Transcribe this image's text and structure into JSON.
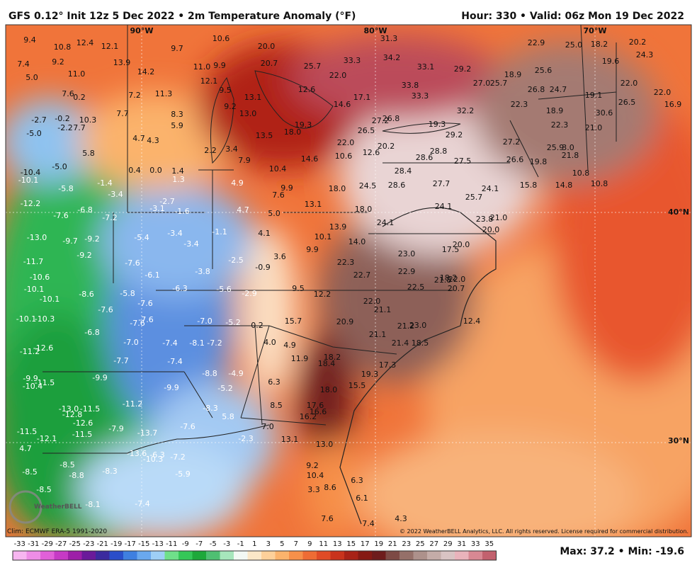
{
  "header": {
    "title": "GFS 0.12° Init 12z 5 Dec 2022 • 2m Temperature Anomaly (°F)",
    "valid": "Hour: 330 • Valid: 06z Mon 19 Dec 2022"
  },
  "map": {
    "grid_labels": [
      "90°W",
      "80°W",
      "70°W",
      "40°N",
      "30°N"
    ],
    "anomaly_labels": [
      "9.4",
      "10.8",
      "12.4",
      "12.1",
      "7.4",
      "9.2",
      "13.9",
      "9.7",
      "10.6",
      "20.0",
      "31.3",
      "22.9",
      "25.0",
      "18.2",
      "20.2",
      "24.3",
      "5.0",
      "11.0",
      "14.2",
      "11.0",
      "9.9",
      "20.7",
      "25.7",
      "33.3",
      "34.2",
      "33.1",
      "29.2",
      "19.6",
      "7.6",
      "0.2",
      "7.2",
      "11.3",
      "12.1",
      "9.5",
      "13.1",
      "12.6",
      "22.0",
      "17.1",
      "33.8",
      "33.3",
      "27.0",
      "25.7",
      "18.9",
      "25.6",
      "26.8",
      "24.7",
      "19.1",
      "22.0",
      "22.0",
      "16.9",
      "10.3",
      "-2.7",
      "-0.2",
      "-2.2",
      "7.7",
      "7.7",
      "8.3",
      "9.2",
      "13.0",
      "14.6",
      "32.2",
      "22.3",
      "18.9",
      "26.5",
      "30.6",
      "-5.0",
      "5.9",
      "19.3",
      "27.2",
      "26.8",
      "19.3",
      "22.3",
      "21.0",
      "4.7",
      "4.3",
      "13.5",
      "18.0",
      "26.5",
      "29.2",
      "22.0",
      "27.2",
      "5.8",
      "2.2",
      "3.4",
      "10.6",
      "12.6",
      "20.2",
      "28.8",
      "28.6",
      "25.9",
      "3.0",
      "21.8",
      "-5.0",
      "7.9",
      "14.6",
      "27.5",
      "26.6",
      "19.8",
      "0.4",
      "0.0",
      "1.4",
      "10.4",
      "28.4",
      "10.8",
      "-10.4",
      "-10.1",
      "1.3",
      "4.9",
      "9.9",
      "18.0",
      "24.5",
      "28.6",
      "27.7",
      "24.1",
      "15.8",
      "14.8",
      "10.8",
      "-5.8",
      "-1.4",
      "-3.4",
      "7.6",
      "25.7",
      "-12.2",
      "-6.8",
      "-7.2",
      "-2.7",
      "-3.1",
      "-1.6",
      "4.7",
      "5.0",
      "13.1",
      "18.0",
      "24.1",
      "-7.6",
      "21.0",
      "23.8",
      "24.1",
      "13.9",
      "20.0",
      "-13.0",
      "-9.7",
      "-9.2",
      "-5.4",
      "-3.4",
      "-1.1",
      "4.1",
      "10.1",
      "14.0",
      "23.0",
      "17.5",
      "20.0",
      "-9.2",
      "-3.4",
      "3.6",
      "9.9",
      "-11.7",
      "-7.6",
      "-2.5",
      "-0.9",
      "22.3",
      "22.9",
      "-10.6",
      "-6.1",
      "-3.8",
      "22.7",
      "21.8",
      "18.2",
      "22.0",
      "-10.1",
      "-8.6",
      "-5.8",
      "-6.3",
      "-5.6",
      "-2.9",
      "9.5",
      "12.2",
      "22.5",
      "20.7",
      "-10.1",
      "-7.6",
      "22.0",
      "-7.6",
      "21.1",
      "-10.1",
      "-10.3",
      "-7.6",
      "-7.6",
      "-7.0",
      "-5.2",
      "0.2",
      "15.7",
      "20.9",
      "21.2",
      "23.0",
      "12.4",
      "-6.8",
      "21.1",
      "-11.2",
      "-12.6",
      "-7.0",
      "-7.4",
      "-8.1",
      "-7.2",
      "4.0",
      "4.9",
      "21.4",
      "18.5",
      "-7.7",
      "-7.4",
      "11.9",
      "18.2",
      "18.4",
      "17.3",
      "-8.8",
      "-4.9",
      "19.3",
      "-9.9",
      "-10.4",
      "-11.5",
      "-9.9",
      "-9.9",
      "-5.2",
      "6.3",
      "15.5",
      "18.0",
      "-13.0",
      "-11.5",
      "-12.8",
      "-11.2",
      "-8.3",
      "8.5",
      "17.6",
      "16.6",
      "-12.6",
      "16.2",
      "5.8",
      "-7.9",
      "-7.6",
      "7.0",
      "-13.7",
      "-11.5",
      "-11.5",
      "-12.1",
      "-2.3",
      "13.1",
      "13.0",
      "4.7",
      "-13.6",
      "-10.3",
      "-6.3",
      "-7.2",
      "9.2",
      "10.4",
      "-8.5",
      "-8.5",
      "-8.8",
      "-8.3",
      "-5.9",
      "6.3",
      "8.6",
      "3.3",
      "-8.5",
      "6.1",
      "-8.1",
      "-7.4",
      "7.6",
      "7.4",
      "4.3"
    ],
    "logo": "WeatherBELL"
  },
  "footer": {
    "climo": "Clim: ECMWF ERA-5 1991-2020",
    "copyright": "© 2022 WeatherBELL Analytics, LLC. All rights reserved. License required for commercial distribution.",
    "maxmin": "Max: 37.2 • Min: -19.6"
  },
  "colorbar": {
    "ticks": [
      -33,
      -31,
      -29,
      -27,
      -25,
      -23,
      -21,
      -19,
      -17,
      -15,
      -13,
      -11,
      -9,
      -7,
      -5,
      -3,
      -1,
      1,
      3,
      5,
      7,
      9,
      11,
      13,
      15,
      17,
      19,
      21,
      23,
      25,
      27,
      29,
      31,
      33,
      35
    ],
    "colors": [
      "#f7b6f0",
      "#ee8de6",
      "#e160d8",
      "#c63ac5",
      "#9d1fa8",
      "#6a1a9a",
      "#3b2a9e",
      "#2a4ec9",
      "#3f7fe0",
      "#6aa8ee",
      "#9ecff6",
      "#6fe08a",
      "#35c758",
      "#1ea83a",
      "#4fbf72",
      "#a6e6bc",
      "#f2f8f4",
      "#fbe7c8",
      "#fdd09a",
      "#fbb36c",
      "#f6904a",
      "#ee6c34",
      "#e04b26",
      "#c9331d",
      "#a82217",
      "#861a14",
      "#6e1c1c",
      "#7d4a45",
      "#957069",
      "#ad918b",
      "#c4aca8",
      "#d9c3c3",
      "#e9b3bb",
      "#d88893",
      "#c2616e"
    ]
  }
}
